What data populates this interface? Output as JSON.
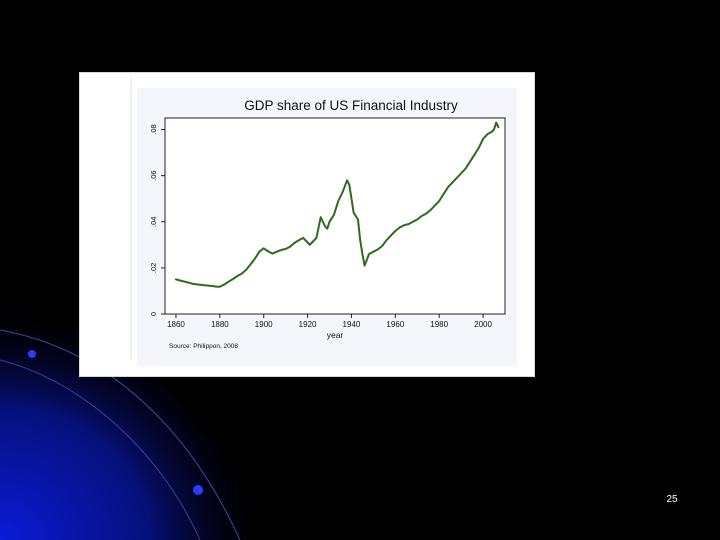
{
  "slide": {
    "page_number": "25"
  },
  "colors": {
    "background": "#000000",
    "accent": "#0a1ad8",
    "line": "#2e6b1e"
  },
  "chart_data": {
    "type": "line",
    "title": "GDP share of US Financial Industry",
    "xlabel": "year",
    "ylabel": "",
    "source": "Source: Philippon, 2008",
    "xlim": [
      1855,
      2010
    ],
    "ylim": [
      0,
      0.085
    ],
    "xticks": [
      1860,
      1880,
      1900,
      1920,
      1940,
      1960,
      1980,
      2000
    ],
    "yticks": [
      {
        "value": 0,
        "label": "0"
      },
      {
        "value": 0.02,
        "label": ".02"
      },
      {
        "value": 0.04,
        "label": ".04"
      },
      {
        "value": 0.06,
        "label": ".06"
      },
      {
        "value": 0.08,
        "label": ".08"
      }
    ],
    "grid": false,
    "legend": "none",
    "series": [
      {
        "x": [
          1860,
          1862,
          1865,
          1868,
          1870,
          1873,
          1876,
          1879,
          1880,
          1882,
          1884,
          1886,
          1888,
          1890,
          1892,
          1894,
          1896,
          1898,
          1900,
          1902,
          1904,
          1906,
          1908,
          1910,
          1912,
          1914,
          1916,
          1918,
          1919,
          1920,
          1921,
          1922,
          1924,
          1926,
          1928,
          1929,
          1930,
          1932,
          1933,
          1934,
          1936,
          1938,
          1939,
          1940,
          1941,
          1943,
          1944,
          1945,
          1946,
          1948,
          1950,
          1952,
          1954,
          1956,
          1958,
          1960,
          1962,
          1964,
          1966,
          1968,
          1970,
          1972,
          1974,
          1976,
          1978,
          1980,
          1982,
          1984,
          1986,
          1988,
          1990,
          1992,
          1994,
          1996,
          1998,
          2000,
          2002,
          2004,
          2005,
          2006,
          2007
        ],
        "y": [
          0.015,
          0.0145,
          0.0138,
          0.013,
          0.0128,
          0.0125,
          0.0122,
          0.0118,
          0.0118,
          0.0128,
          0.014,
          0.0152,
          0.0165,
          0.0175,
          0.0192,
          0.0215,
          0.024,
          0.027,
          0.0285,
          0.0272,
          0.0262,
          0.027,
          0.0278,
          0.0282,
          0.0292,
          0.0308,
          0.032,
          0.033,
          0.032,
          0.031,
          0.03,
          0.031,
          0.033,
          0.042,
          0.038,
          0.037,
          0.04,
          0.043,
          0.046,
          0.049,
          0.053,
          0.058,
          0.056,
          0.05,
          0.044,
          0.041,
          0.032,
          0.026,
          0.021,
          0.026,
          0.027,
          0.028,
          0.0295,
          0.032,
          0.034,
          0.036,
          0.0375,
          0.0385,
          0.039,
          0.04,
          0.041,
          0.0425,
          0.0435,
          0.045,
          0.047,
          0.049,
          0.052,
          0.055,
          0.057,
          0.059,
          0.061,
          0.063,
          0.066,
          0.069,
          0.072,
          0.076,
          0.078,
          0.079,
          0.08,
          0.083,
          0.081
        ]
      }
    ]
  }
}
